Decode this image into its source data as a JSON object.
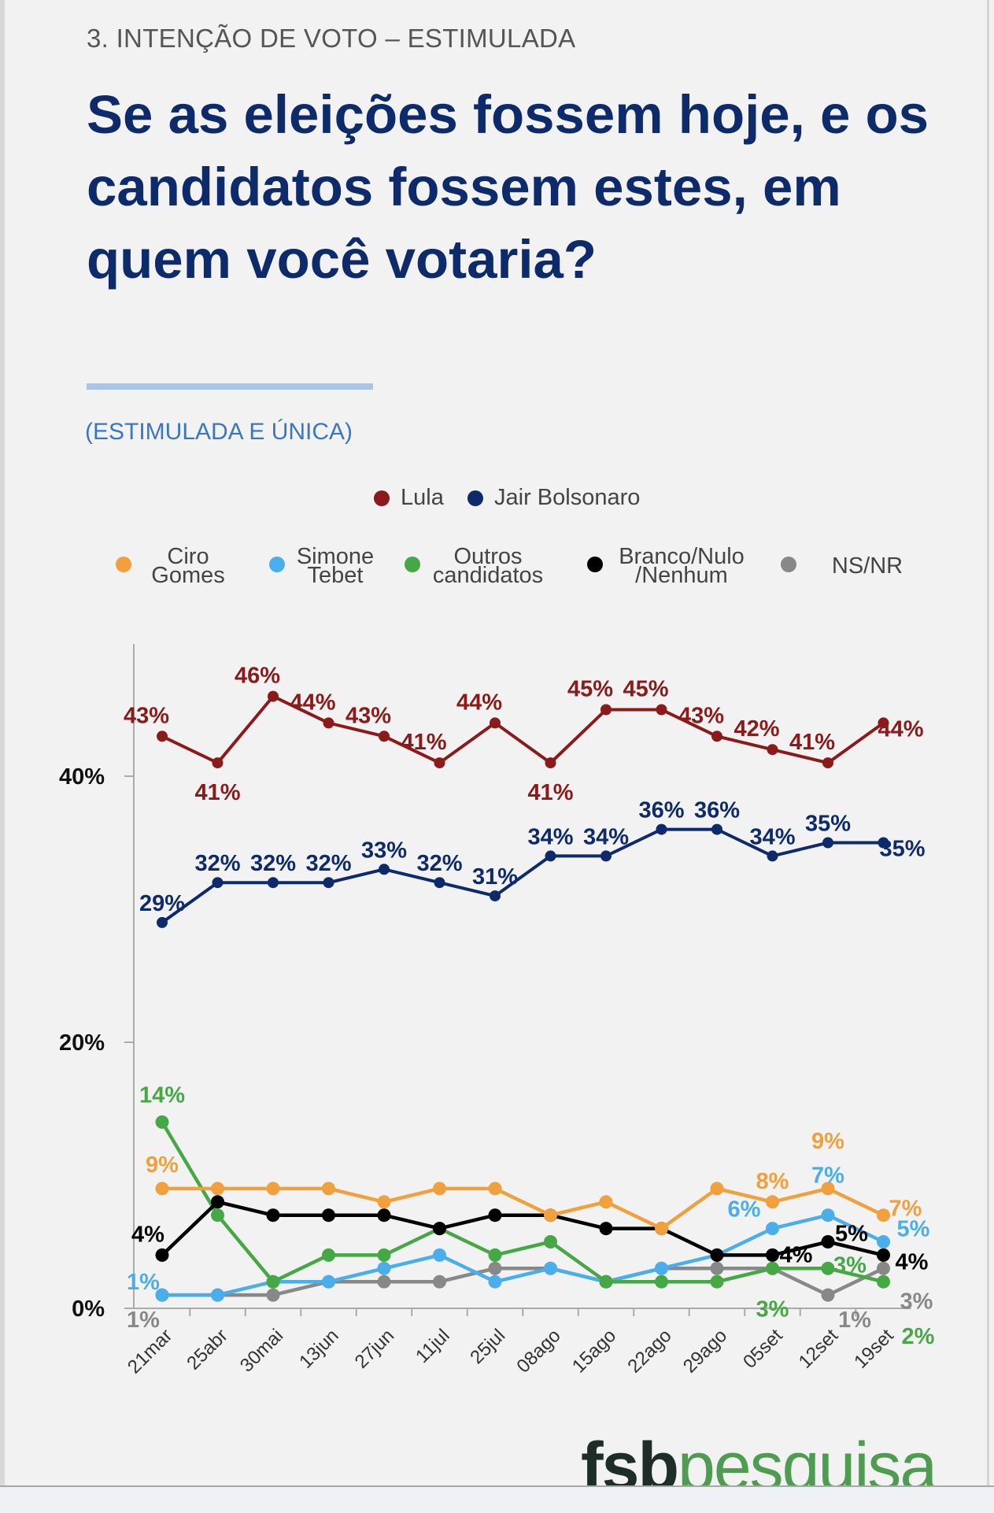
{
  "header": {
    "section": "3. INTENÇÃO DE VOTO – ESTIMULADA",
    "title": "Se as eleições fossem hoje, e os candidatos fossem estes, em quem você votaria?",
    "subtitle": "(ESTIMULADA E ÚNICA)"
  },
  "legend": {
    "row1": [
      {
        "name": "Lula",
        "color": "#8b1a1a"
      },
      {
        "name": "Jair Bolsonaro",
        "color": "#0d2a6b"
      }
    ],
    "row2": [
      {
        "line1": "Ciro",
        "line2": "Gomes",
        "color": "#f0a03c"
      },
      {
        "line1": "Simone",
        "line2": "Tebet",
        "color": "#4aaeea"
      },
      {
        "line1": "Outros",
        "line2": "candidatos",
        "color": "#45a845"
      },
      {
        "line1": "Branco/Nulo",
        "line2": "/Nenhum",
        "color": "#000000"
      },
      {
        "line1": "NS/NR",
        "line2": "",
        "color": "#888888"
      }
    ]
  },
  "chart_data": {
    "type": "line",
    "categories": [
      "21mar",
      "25abr",
      "30mai",
      "13jun",
      "27jun",
      "11jul",
      "25jul",
      "08ago",
      "15ago",
      "22ago",
      "29ago",
      "05set",
      "12set",
      "19set"
    ],
    "ylim": [
      0,
      48
    ],
    "yticks": [
      {
        "value": 0,
        "label": "0%"
      },
      {
        "value": 20,
        "label": "20%"
      },
      {
        "value": 40,
        "label": "40%"
      }
    ],
    "grid": false,
    "legend_position": "top",
    "series": [
      {
        "name": "Lula",
        "color": "#8b1a1a",
        "values": [
          43,
          41,
          46,
          44,
          43,
          41,
          44,
          41,
          45,
          45,
          43,
          42,
          41,
          44
        ],
        "labeled": [
          0,
          1,
          2,
          3,
          4,
          5,
          6,
          7,
          8,
          9,
          10,
          11,
          12,
          13
        ]
      },
      {
        "name": "Jair Bolsonaro",
        "color": "#0d2a6b",
        "values": [
          29,
          32,
          32,
          32,
          33,
          32,
          31,
          34,
          34,
          36,
          36,
          34,
          35,
          35
        ],
        "labeled": [
          0,
          1,
          2,
          3,
          4,
          5,
          6,
          7,
          8,
          9,
          10,
          11,
          12,
          13
        ]
      },
      {
        "name": "Ciro Gomes",
        "color": "#f0a03c",
        "values": [
          9,
          9,
          9,
          9,
          8,
          9,
          9,
          7,
          8,
          6,
          9,
          8,
          9,
          7
        ],
        "labeled": [
          0,
          11,
          12,
          13
        ]
      },
      {
        "name": "Branco/Nulo/Nenhum",
        "color": "#000000",
        "values": [
          4,
          8,
          7,
          7,
          7,
          6,
          7,
          7,
          6,
          6,
          4,
          4,
          5,
          4
        ],
        "labeled": [
          0,
          11,
          12,
          13
        ]
      },
      {
        "name": "Outros candidatos",
        "color": "#45a845",
        "values": [
          14,
          7,
          2,
          4,
          4,
          6,
          4,
          5,
          2,
          2,
          2,
          3,
          3,
          2
        ],
        "labeled": [
          0,
          11,
          12,
          13
        ]
      },
      {
        "name": "Simone Tebet",
        "color": "#4aaeea",
        "values": [
          1,
          1,
          2,
          2,
          3,
          4,
          2,
          3,
          2,
          3,
          4,
          6,
          7,
          5
        ],
        "labeled": [
          0,
          11,
          12,
          13
        ]
      },
      {
        "name": "NS/NR",
        "color": "#888888",
        "values": [
          1,
          1,
          1,
          2,
          2,
          2,
          3,
          3,
          2,
          3,
          3,
          3,
          1,
          3
        ],
        "labeled": [
          0,
          12,
          13
        ]
      }
    ]
  },
  "logo": {
    "part1": "fsb",
    "part2": "pesquisa"
  }
}
